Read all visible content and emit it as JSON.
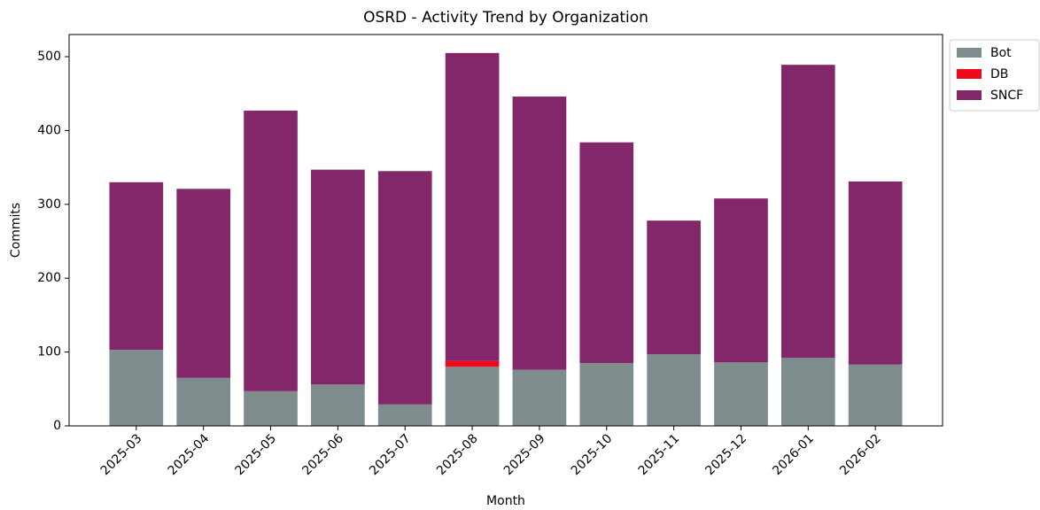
{
  "chart_data": {
    "type": "stacked_bar",
    "title": "OSRD - Activity Trend by Organization",
    "x_label": "Month",
    "y_label": "Commits",
    "categories": [
      "2025-03",
      "2025-04",
      "2025-05",
      "2025-06",
      "2025-07",
      "2025-08",
      "2025-09",
      "2025-10",
      "2025-11",
      "2025-12",
      "2026-01",
      "2026-02"
    ],
    "series": [
      {
        "name": "Bot",
        "color": "#7f8c8d",
        "values": [
          103,
          65,
          47,
          56,
          29,
          80,
          76,
          85,
          97,
          86,
          92,
          83
        ]
      },
      {
        "name": "DB",
        "color": "#ee0a1a",
        "values": [
          0,
          0,
          0,
          0,
          0,
          8,
          0,
          0,
          0,
          0,
          0,
          0
        ]
      },
      {
        "name": "SNCF",
        "color": "#82286a",
        "values": [
          227,
          256,
          380,
          291,
          316,
          417,
          370,
          299,
          181,
          222,
          397,
          248
        ]
      }
    ],
    "ylim": [
      0,
      530
    ],
    "yticks": [
      0,
      100,
      200,
      300,
      400,
      500
    ],
    "grid": false,
    "legend": "outside-right"
  }
}
